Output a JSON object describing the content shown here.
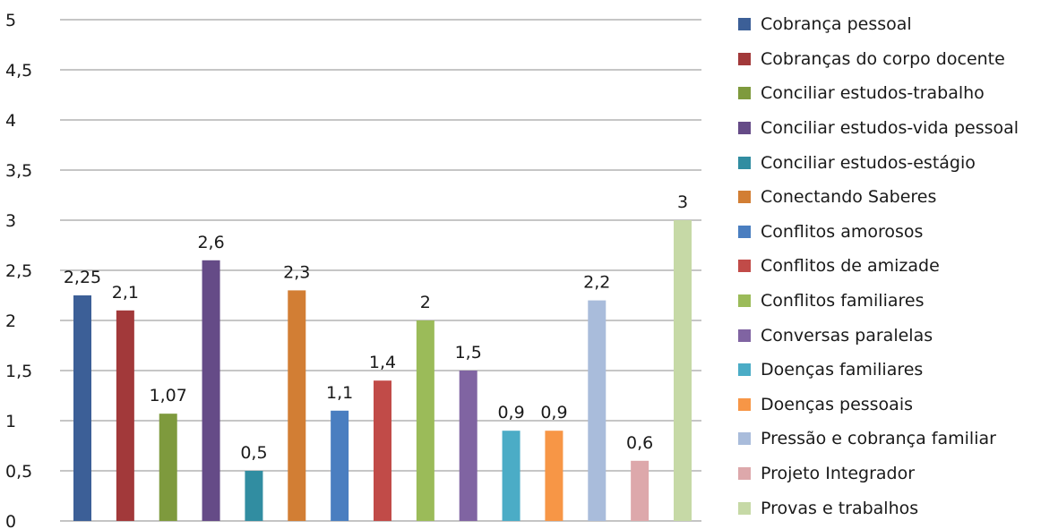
{
  "chart_data": {
    "type": "bar",
    "title": "",
    "xlabel": "",
    "ylabel": "",
    "ylim": [
      0,
      5
    ],
    "y_ticks": [
      "0",
      "0,5",
      "1",
      "1,5",
      "2",
      "2,5",
      "3",
      "3,5",
      "4",
      "4,5",
      "5"
    ],
    "grid": true,
    "legend_position": "right",
    "series": [
      {
        "name": "Cobrança pessoal",
        "value": 2.25,
        "label": "2,25",
        "color": "#3c5f97"
      },
      {
        "name": "Cobranças do corpo docente",
        "value": 2.1,
        "label": "2,1",
        "color": "#a2393a"
      },
      {
        "name": "Conciliar estudos-trabalho",
        "value": 1.07,
        "label": "1,07",
        "color": "#7e9a3d"
      },
      {
        "name": "Conciliar estudos-vida pessoal",
        "value": 2.6,
        "label": "2,6",
        "color": "#654b87"
      },
      {
        "name": "Conciliar estudos-estágio",
        "value": 0.5,
        "label": "0,5",
        "color": "#318da1"
      },
      {
        "name": "Conectando Saberes",
        "value": 2.3,
        "label": "2,3",
        "color": "#d27e34"
      },
      {
        "name": "Conflitos amorosos",
        "value": 1.1,
        "label": "1,1",
        "color": "#4a7ec0"
      },
      {
        "name": "Conflitos de amizade",
        "value": 1.4,
        "label": "1,4",
        "color": "#c14b48"
      },
      {
        "name": "Conflitos familiares",
        "value": 2.0,
        "label": "2",
        "color": "#9bbb59"
      },
      {
        "name": "Conversas paralelas",
        "value": 1.5,
        "label": "1,5",
        "color": "#8064a2"
      },
      {
        "name": "Doenças familiares",
        "value": 0.9,
        "label": "0,9",
        "color": "#4bacc6"
      },
      {
        "name": "Doenças pessoais",
        "value": 0.9,
        "label": "0,9",
        "color": "#f79646"
      },
      {
        "name": "Pressão e cobrança familiar",
        "value": 2.2,
        "label": "2,2",
        "color": "#a9bcdb"
      },
      {
        "name": "Projeto Integrador",
        "value": 0.6,
        "label": "0,6",
        "color": "#dda8ab"
      },
      {
        "name": "Provas e trabalhos",
        "value": 3.0,
        "label": "3",
        "color": "#c6d9a6"
      }
    ]
  }
}
